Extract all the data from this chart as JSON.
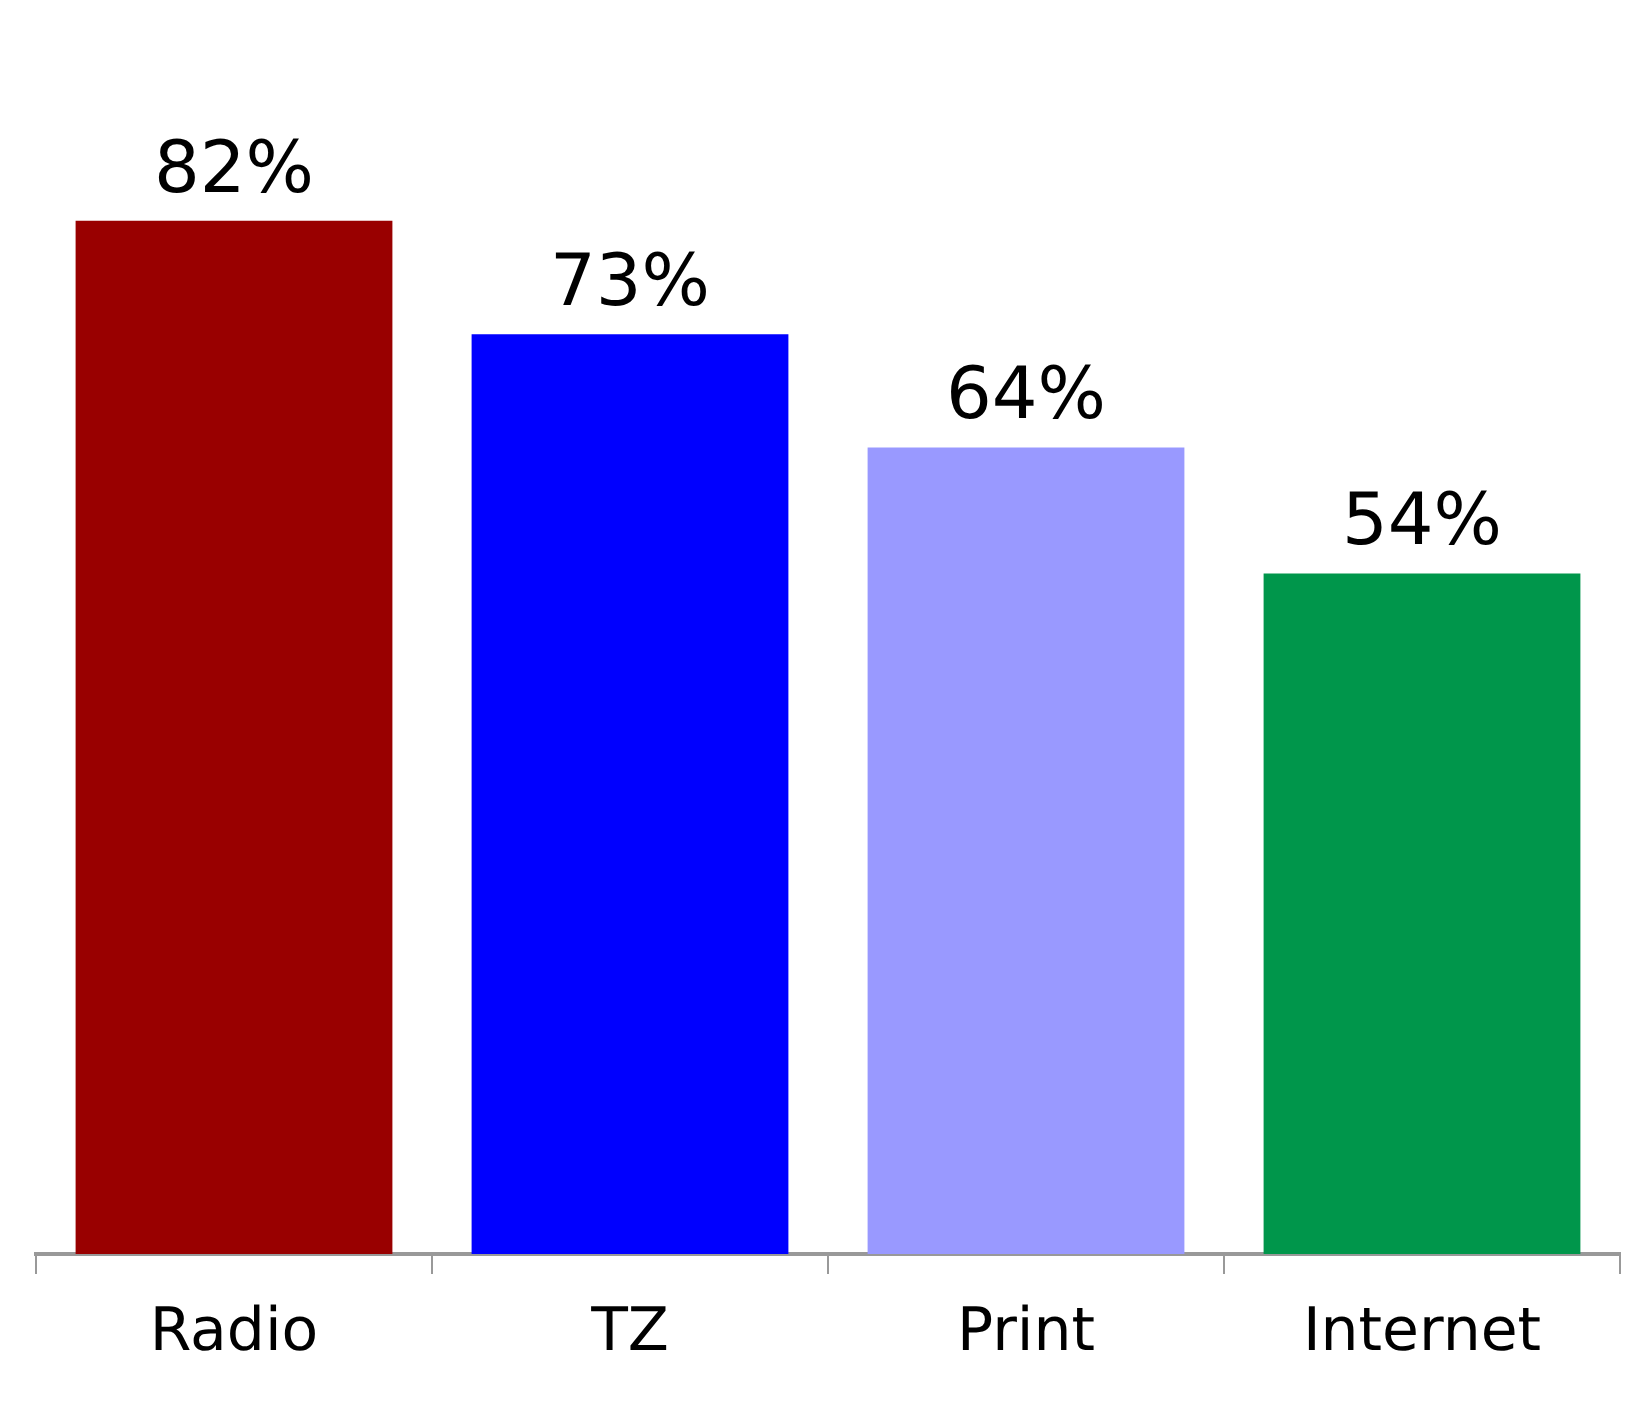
{
  "chart_data": {
    "type": "bar",
    "categories": [
      "Radio",
      "TZ",
      "Print",
      "Internet"
    ],
    "values": [
      82,
      73,
      64,
      54
    ],
    "colors": [
      "#990000",
      "#0000ff",
      "#9999ff",
      "#00964b"
    ],
    "value_labels": [
      "82%",
      "73%",
      "64%",
      "54%"
    ],
    "tick_labels": "x"
  }
}
